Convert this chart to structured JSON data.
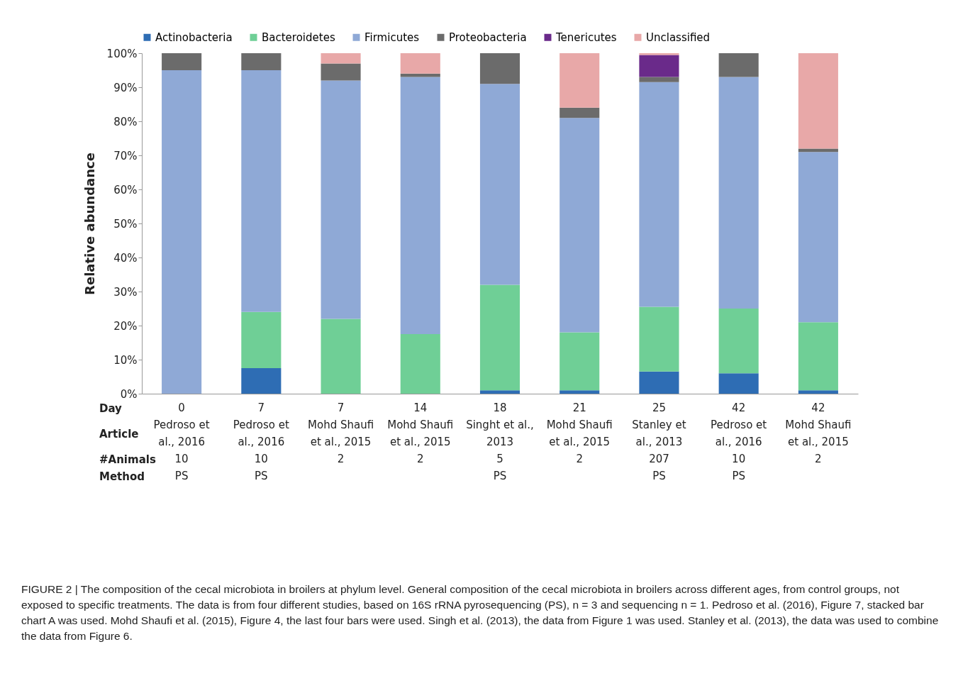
{
  "chart_data": {
    "type": "bar",
    "stacked": true,
    "ylabel": "Relative abundance",
    "legend": "top",
    "grid": false,
    "categories": [
      "0\n\nPedroso et\nal., 2016\n\n10\n\nPS",
      "7\n\nPedroso et\nal., 2016\n\n10\n\nPS",
      "7\n\nMohd Shaufi\net al., 2015\n\n2\n\n",
      "14\n\nMohd Shaufi\net al., 2015\n\n2\n\n",
      "18\n\nSinght et al.,\n2013\n\n5\n\nPS",
      "21\n\nMohd Shaufi\net al., 2015\n\n2\n\n",
      "25\n\nStanley et\nal., 2013\n\n207\n\nPS",
      "42\n\nPedroso et\nal., 2016\n\n10\n\nPS",
      "42\n\nMohd Shaufi\net al., 2015\n\n2\n\n"
    ],
    "ylim": [
      0,
      100
    ],
    "yticks": [
      {
        "value": 0,
        "label": "0%"
      },
      {
        "value": 10,
        "label": "10%"
      },
      {
        "value": 20,
        "label": "20%"
      },
      {
        "value": 30,
        "label": "30%"
      },
      {
        "value": 40,
        "label": "40%"
      },
      {
        "value": 50,
        "label": "50%"
      },
      {
        "value": 60,
        "label": "60%"
      },
      {
        "value": 70,
        "label": "70%"
      },
      {
        "value": 80,
        "label": "80%"
      },
      {
        "value": 90,
        "label": "90%"
      },
      {
        "value": 100,
        "label": "100%"
      }
    ],
    "series": [
      {
        "name": "Actinobacteria",
        "color": "#2e6db4",
        "values": [
          0,
          7.5,
          0,
          0,
          1,
          1,
          6.5,
          6,
          1
        ]
      },
      {
        "name": "Bacteroidetes",
        "color": "#6fcf96",
        "values": [
          0,
          16.5,
          22,
          17.5,
          31,
          17,
          19,
          19,
          20
        ]
      },
      {
        "name": "Firmicutes",
        "color": "#8fa9d6",
        "values": [
          95,
          71,
          70,
          75.5,
          59,
          63,
          66,
          68,
          50
        ]
      },
      {
        "name": "Proteobacteria",
        "color": "#6b6b6b",
        "values": [
          5,
          5,
          5,
          1,
          9,
          3,
          1.5,
          7,
          1
        ]
      },
      {
        "name": "Tenericutes",
        "color": "#6a2a8a",
        "values": [
          0,
          0,
          0,
          0,
          0,
          0,
          6.5,
          0,
          0
        ]
      },
      {
        "name": "Unclassified",
        "color": "#e8a8a8",
        "values": [
          0,
          0,
          3,
          6,
          0,
          16,
          0.5,
          0,
          28
        ]
      }
    ],
    "annotations": [
      "Day",
      "Article",
      "#Animals",
      "Method",
      "FIGURE 2 | The composition of the cecal microbiota in broilers at phylum level. General composition of the cecal microbiota in broilers across different ages, from control groups, not exposed to specific treatments. The data is from four different studies, based on 16S rRNA pyrosequencing (PS), n = 3 and sequencing n = 1. Pedroso et al. (2016), Figure 7, stacked bar chart A was used. Mohd Shaufi et al. (2015), Figure 4, the last four bars were used. Singh et al. (2013), the data from Figure 1 was used. Stanley et al. (2013), the data was used to combine the data from Figure 6."
    ]
  }
}
